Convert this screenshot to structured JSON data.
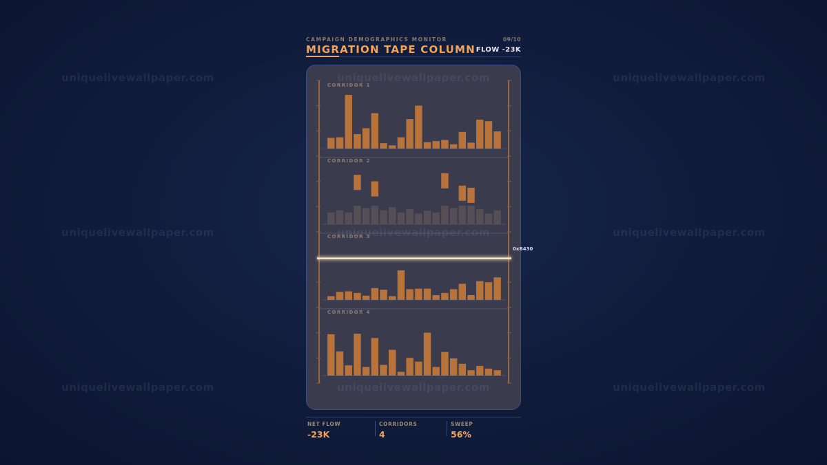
{
  "header": {
    "eyebrow": "CAMPAIGN DEMOGRAPHICS MONITOR",
    "title": "MIGRATION TAPE COLUMN",
    "page": "09/10",
    "flow": "FLOW -23K"
  },
  "scan": {
    "label": "0xB430",
    "progress": 0.5
  },
  "stats": [
    {
      "label": "NET FLOW",
      "value": "-23K"
    },
    {
      "label": "CORRIDORS",
      "value": "4"
    },
    {
      "label": "SWEEP",
      "value": "56%"
    }
  ],
  "watermark": "uniquelivewallpaper.com",
  "colors": {
    "bar": "#b8733a",
    "accent": "#f1a35a",
    "panel": "#3b3b4e",
    "scan": "#fff6dd"
  },
  "chart_data": [
    {
      "type": "bar",
      "title": "CORRIDOR 1",
      "ylim": [
        0,
        100
      ],
      "values": [
        20,
        21,
        100,
        27,
        38,
        66,
        10,
        6,
        21,
        55,
        80,
        12,
        14,
        16,
        8,
        31,
        11,
        54,
        51,
        32
      ]
    },
    {
      "type": "bar",
      "title": "CORRIDOR 2",
      "ylim": [
        0,
        100
      ],
      "values": [
        22,
        26,
        22,
        92,
        30,
        80,
        26,
        32,
        22,
        28,
        20,
        25,
        22,
        95,
        30,
        72,
        68,
        28,
        20,
        26
      ]
    },
    {
      "type": "bar",
      "title": "CORRIDOR 3",
      "ylim": [
        0,
        100
      ],
      "values": [
        7,
        15,
        16,
        13,
        8,
        22,
        19,
        7,
        55,
        20,
        21,
        21,
        9,
        13,
        20,
        30,
        9,
        35,
        33,
        42
      ]
    },
    {
      "type": "bar",
      "title": "CORRIDOR 4",
      "ylim": [
        0,
        100
      ],
      "values": [
        77,
        45,
        19,
        78,
        16,
        70,
        20,
        48,
        7,
        33,
        26,
        80,
        16,
        44,
        32,
        22,
        10,
        18,
        13,
        10
      ]
    }
  ]
}
